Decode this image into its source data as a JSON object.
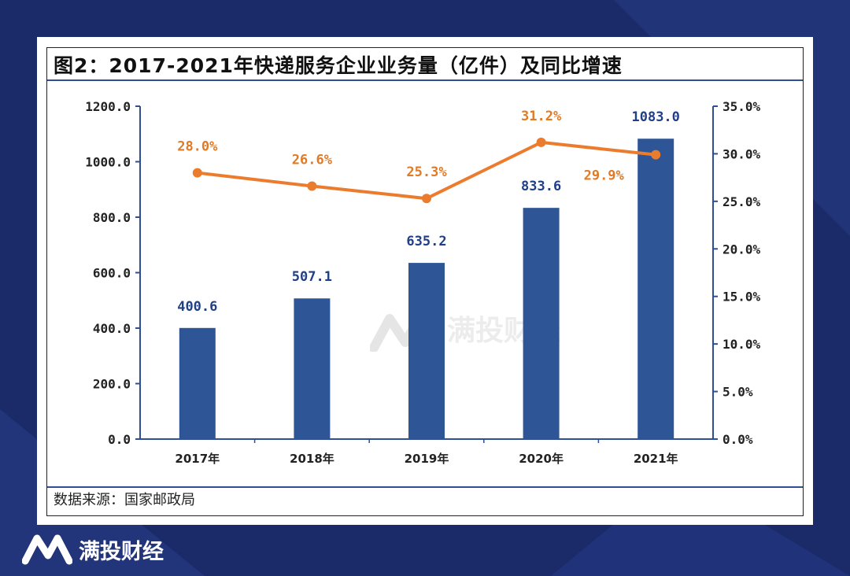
{
  "title": "图2：2017-2021年快递服务企业业务量（亿件）及同比增速",
  "source": "数据来源：国家邮政局",
  "watermark": "满投财经",
  "brand": {
    "name": "满投财经"
  },
  "colors": {
    "bar": "#2e5596",
    "line": "#ec7c2d",
    "axis": "#2f4e93",
    "background": "#1b2a68"
  },
  "chart_data": {
    "type": "bar+line",
    "categories": [
      "2017年",
      "2018年",
      "2019年",
      "2020年",
      "2021年"
    ],
    "series": [
      {
        "name": "快递服务企业业务量（亿件）",
        "type": "bar",
        "axis": "left",
        "values": [
          400.6,
          507.1,
          635.2,
          833.6,
          1083.0
        ],
        "labels": [
          "400.6",
          "507.1",
          "635.2",
          "833.6",
          "1083.0"
        ]
      },
      {
        "name": "同比增速",
        "type": "line",
        "axis": "right",
        "values": [
          28.0,
          26.6,
          25.3,
          31.2,
          29.9
        ],
        "labels": [
          "28.0%",
          "26.6%",
          "25.3%",
          "31.2%",
          "29.9%"
        ]
      }
    ],
    "y_left": {
      "min": 0,
      "max": 1200,
      "ticks": [
        "0.0",
        "200.0",
        "400.0",
        "600.0",
        "800.0",
        "1000.0",
        "1200.0"
      ]
    },
    "y_right": {
      "min": 0,
      "max": 35,
      "ticks": [
        "0.0%",
        "5.0%",
        "10.0%",
        "15.0%",
        "20.0%",
        "25.0%",
        "30.0%",
        "35.0%"
      ]
    },
    "grid": false,
    "legend": "none"
  }
}
